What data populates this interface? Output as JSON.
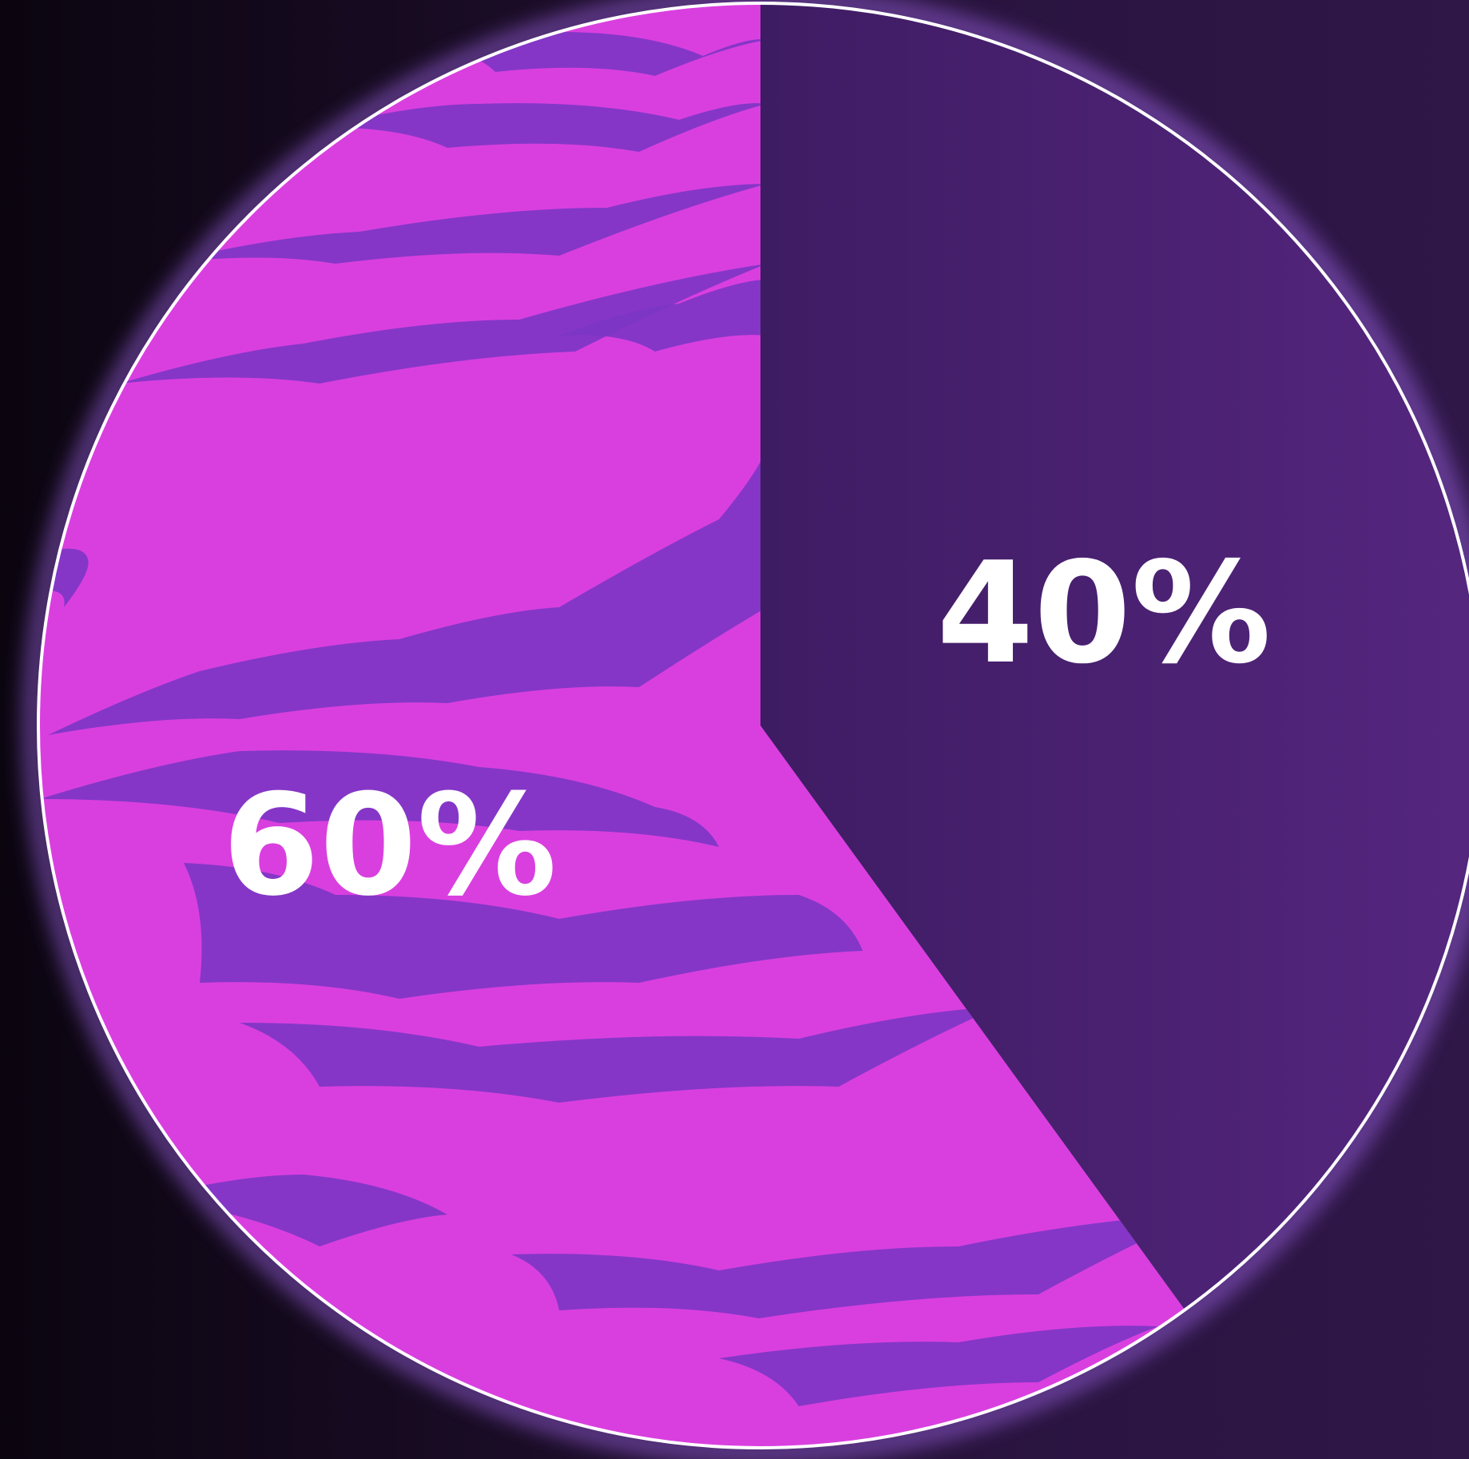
{
  "chart_data": {
    "type": "pie",
    "slices": [
      {
        "label": "40%",
        "value": 40,
        "color": "#4a2275"
      },
      {
        "label": "60%",
        "value": 60,
        "color": "#d93fdf"
      }
    ],
    "start_angle_deg": 0,
    "direction": "clockwise",
    "colors": {
      "background_dark": "#0b0510",
      "background_light": "#2f1748",
      "marble_swirl": "#7b35c4",
      "outline": "#ffffff",
      "glow": "#b070ff"
    }
  }
}
